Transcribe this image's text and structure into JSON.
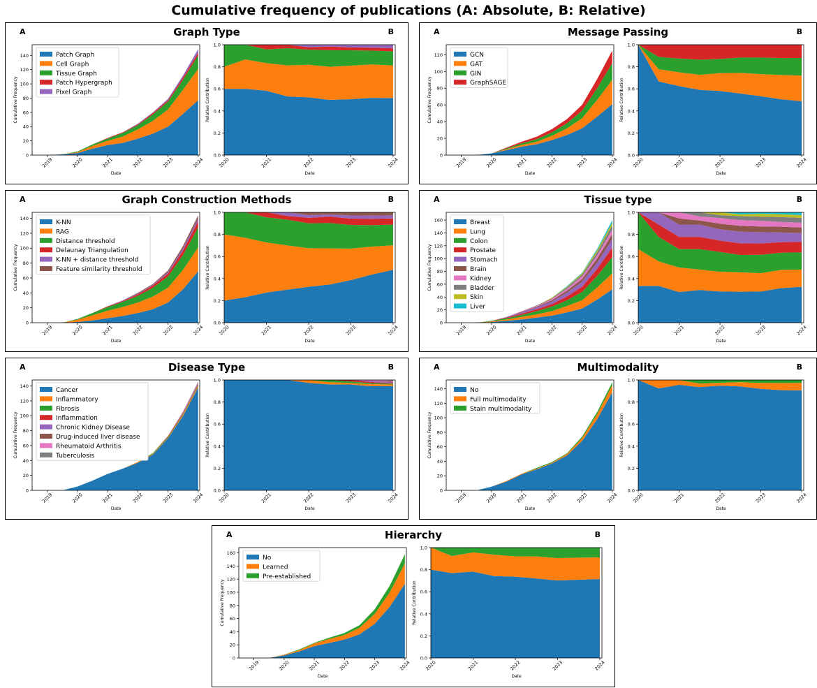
{
  "title": "Cumulative frequency of publications (A: Absolute, B: Relative)",
  "panel_labels": {
    "a": "A",
    "b": "B"
  },
  "axis": {
    "x": "Date",
    "abs_y": "Cumulative Frequency",
    "rel_y": "Relative Contribution"
  },
  "colors": [
    "#1f77b4",
    "#ff7f0e",
    "#2ca02c",
    "#d62728",
    "#9467bd",
    "#8c564b",
    "#e377c2",
    "#7f7f7f",
    "#bcbd22",
    "#17becf"
  ],
  "chart_data": [
    {
      "type": "area",
      "title": "Graph Type",
      "xlabel": "Date",
      "abs_ylabel": "Cumulative Frequency",
      "rel_ylabel": "Relative Contribution",
      "x": [
        "2018-07",
        "2019-01",
        "2019-07",
        "2020-01",
        "2020-07",
        "2021-01",
        "2021-07",
        "2022-01",
        "2022-07",
        "2023-01",
        "2023-07",
        "2024-01"
      ],
      "abs_xticks": [
        "2019",
        "2020",
        "2021",
        "2022",
        "2023",
        "2024"
      ],
      "rel_xticks": [
        "2020",
        "2021",
        "2022",
        "2023",
        "2024"
      ],
      "abs_yticks": [
        0,
        20,
        40,
        60,
        80,
        100,
        120,
        140
      ],
      "abs_ylim": [
        0,
        155
      ],
      "rel_yticks": [
        0.0,
        0.2,
        0.4,
        0.6,
        0.8,
        1.0
      ],
      "rel_start": "2020-01",
      "series": [
        {
          "name": "Patch Graph",
          "values": [
            0,
            0,
            1,
            3,
            9,
            14,
            17,
            23,
            30,
            40,
            58,
            77
          ]
        },
        {
          "name": "Cell Graph",
          "values": [
            0,
            0,
            0,
            1,
            4,
            6,
            9,
            13,
            18,
            24,
            34,
            44
          ]
        },
        {
          "name": "Tissue Graph",
          "values": [
            0,
            0,
            0,
            1,
            2,
            3,
            5,
            6,
            9,
            11,
            14,
            19
          ]
        },
        {
          "name": "Patch Hypergraph",
          "values": [
            0,
            0,
            0,
            0,
            0,
            1,
            1,
            1,
            2,
            2,
            3,
            4
          ]
        },
        {
          "name": "Pixel Graph",
          "values": [
            0,
            0,
            0,
            0,
            0,
            0,
            0,
            1,
            1,
            2,
            3,
            5
          ]
        }
      ]
    },
    {
      "type": "area",
      "title": "Message Passing",
      "xlabel": "Date",
      "abs_ylabel": "Cumulative Frequency",
      "rel_ylabel": "Relative Contribution",
      "x": [
        "2018-07",
        "2019-01",
        "2019-07",
        "2020-01",
        "2020-07",
        "2021-01",
        "2021-07",
        "2022-01",
        "2022-07",
        "2023-01",
        "2023-07",
        "2024-01"
      ],
      "abs_xticks": [
        "2019",
        "2020",
        "2021",
        "2022",
        "2023",
        "2024"
      ],
      "rel_xticks": [
        "2020",
        "2021",
        "2022",
        "2023",
        "2024"
      ],
      "abs_yticks": [
        0,
        20,
        40,
        60,
        80,
        100,
        120
      ],
      "abs_ylim": [
        0,
        132
      ],
      "rel_yticks": [
        0.0,
        0.2,
        0.4,
        0.6,
        0.8,
        1.0
      ],
      "rel_start": "2020-01",
      "series": [
        {
          "name": "GCN",
          "values": [
            0,
            0,
            0,
            2,
            6,
            10,
            13,
            18,
            24,
            32,
            46,
            61
          ]
        },
        {
          "name": "GAT",
          "values": [
            0,
            0,
            0,
            0,
            1,
            2,
            3,
            5,
            8,
            12,
            20,
            29
          ]
        },
        {
          "name": "GIN",
          "values": [
            0,
            0,
            0,
            0,
            1,
            2,
            3,
            4,
            6,
            9,
            14,
            20
          ]
        },
        {
          "name": "GraphSAGE",
          "values": [
            0,
            0,
            0,
            0,
            1,
            2,
            3,
            4,
            5,
            7,
            11,
            15
          ]
        }
      ]
    },
    {
      "type": "area",
      "title": "Graph Construction Methods",
      "xlabel": "Date",
      "abs_ylabel": "Cumulative Frequency",
      "rel_ylabel": "Relative Contribution",
      "x": [
        "2018-07",
        "2019-01",
        "2019-07",
        "2020-01",
        "2020-07",
        "2021-01",
        "2021-07",
        "2022-01",
        "2022-07",
        "2023-01",
        "2023-07",
        "2024-01"
      ],
      "abs_xticks": [
        "2019",
        "2020",
        "2021",
        "2022",
        "2023",
        "2024"
      ],
      "rel_xticks": [
        "2020",
        "2021",
        "2022",
        "2023",
        "2024"
      ],
      "abs_yticks": [
        0,
        20,
        40,
        60,
        80,
        100,
        120,
        140
      ],
      "abs_ylim": [
        0,
        148
      ],
      "rel_yticks": [
        0.0,
        0.2,
        0.4,
        0.6,
        0.8,
        1.0
      ],
      "rel_start": "2020-01",
      "series": [
        {
          "name": "K-NN",
          "values": [
            0,
            0,
            0,
            1,
            3,
            6,
            9,
            13,
            18,
            27,
            45,
            69
          ]
        },
        {
          "name": "RAG",
          "values": [
            0,
            0,
            0,
            3,
            7,
            10,
            12,
            14,
            17,
            20,
            26,
            32
          ]
        },
        {
          "name": "Distance threshold",
          "values": [
            0,
            0,
            0,
            1,
            3,
            5,
            7,
            9,
            12,
            15,
            20,
            27
          ]
        },
        {
          "name": "Delaunay Triangulation",
          "values": [
            0,
            0,
            0,
            0,
            0,
            1,
            1,
            2,
            3,
            4,
            6,
            8
          ]
        },
        {
          "name": "K-NN + distance threshold",
          "values": [
            0,
            0,
            0,
            0,
            0,
            0,
            1,
            1,
            1,
            2,
            3,
            4
          ]
        },
        {
          "name": "Feature similarity threshold",
          "values": [
            0,
            0,
            0,
            0,
            0,
            0,
            0,
            1,
            1,
            2,
            3,
            4
          ]
        }
      ]
    },
    {
      "type": "area",
      "title": "Tissue type",
      "xlabel": "Date",
      "abs_ylabel": "Cumulative Frequency",
      "rel_ylabel": "Relative Contribution",
      "x": [
        "2018-07",
        "2019-01",
        "2019-07",
        "2020-01",
        "2020-07",
        "2021-01",
        "2021-07",
        "2022-01",
        "2022-07",
        "2023-01",
        "2023-07",
        "2024-01"
      ],
      "abs_xticks": [
        "2019",
        "2020",
        "2021",
        "2022",
        "2023",
        "2024"
      ],
      "rel_xticks": [
        "2020",
        "2021",
        "2022",
        "2023",
        "2024"
      ],
      "abs_yticks": [
        0,
        20,
        40,
        60,
        80,
        100,
        120,
        140,
        160
      ],
      "abs_ylim": [
        0,
        172
      ],
      "rel_yticks": [
        0.0,
        0.2,
        0.4,
        0.6,
        0.8,
        1.0
      ],
      "rel_start": "2020-01",
      "series": [
        {
          "name": "Breast",
          "values": [
            0,
            0,
            0,
            1,
            3,
            5,
            8,
            11,
            16,
            22,
            36,
            52
          ]
        },
        {
          "name": "Lung",
          "values": [
            0,
            0,
            0,
            1,
            2,
            4,
            5,
            7,
            10,
            13,
            19,
            25
          ]
        },
        {
          "name": "Colon",
          "values": [
            0,
            0,
            0,
            1,
            2,
            3,
            5,
            7,
            9,
            13,
            18,
            25
          ]
        },
        {
          "name": "Prostate",
          "values": [
            0,
            0,
            0,
            0,
            1,
            2,
            3,
            4,
            6,
            8,
            11,
            15
          ]
        },
        {
          "name": "Stomach",
          "values": [
            0,
            0,
            0,
            0,
            1,
            2,
            3,
            4,
            6,
            8,
            10,
            13
          ]
        },
        {
          "name": "Brain",
          "values": [
            0,
            0,
            0,
            0,
            0,
            1,
            1,
            2,
            3,
            4,
            6,
            8
          ]
        },
        {
          "name": "Kidney",
          "values": [
            0,
            0,
            0,
            0,
            0,
            1,
            1,
            2,
            3,
            4,
            5,
            7
          ]
        },
        {
          "name": "Bladder",
          "values": [
            0,
            0,
            0,
            0,
            0,
            0,
            1,
            1,
            2,
            3,
            5,
            7
          ]
        },
        {
          "name": "Skin",
          "values": [
            0,
            0,
            0,
            0,
            0,
            0,
            0,
            1,
            1,
            2,
            3,
            4
          ]
        },
        {
          "name": "Liver",
          "values": [
            0,
            0,
            0,
            0,
            0,
            0,
            0,
            0,
            1,
            1,
            2,
            4
          ]
        }
      ]
    },
    {
      "type": "area",
      "title": "Disease Type",
      "xlabel": "Date",
      "abs_ylabel": "Cumulative Frequency",
      "rel_ylabel": "Relative Contribution",
      "x": [
        "2018-07",
        "2019-01",
        "2019-07",
        "2020-01",
        "2020-07",
        "2021-01",
        "2021-07",
        "2022-01",
        "2022-07",
        "2023-01",
        "2023-07",
        "2024-01"
      ],
      "abs_xticks": [
        "2019",
        "2020",
        "2021",
        "2022",
        "2023",
        "2024"
      ],
      "rel_xticks": [
        "2020",
        "2021",
        "2022",
        "2023",
        "2024"
      ],
      "abs_yticks": [
        0,
        20,
        40,
        60,
        80,
        100,
        120,
        140
      ],
      "abs_ylim": [
        0,
        148
      ],
      "rel_yticks": [
        0.0,
        0.2,
        0.4,
        0.6,
        0.8,
        1.0
      ],
      "rel_start": "2020-01",
      "series": [
        {
          "name": "Cancer",
          "values": [
            0,
            0,
            0,
            5,
            13,
            22,
            29,
            37,
            48,
            70,
            100,
            138
          ]
        },
        {
          "name": "Inflammatory",
          "values": [
            0,
            0,
            0,
            0,
            0,
            0,
            0,
            1,
            1,
            1,
            2,
            2
          ]
        },
        {
          "name": "Fibrosis",
          "values": [
            0,
            0,
            0,
            0,
            0,
            0,
            0,
            0,
            1,
            1,
            1,
            1
          ]
        },
        {
          "name": "Inflammation",
          "values": [
            0,
            0,
            0,
            0,
            0,
            0,
            0,
            0,
            0,
            1,
            1,
            1
          ]
        },
        {
          "name": "Chronic Kidney Disease",
          "values": [
            0,
            0,
            0,
            0,
            0,
            0,
            0,
            0,
            0,
            0,
            1,
            1
          ]
        },
        {
          "name": "Drug-induced liver disease",
          "values": [
            0,
            0,
            0,
            0,
            0,
            0,
            0,
            0,
            0,
            0,
            0,
            1
          ]
        },
        {
          "name": "Rheumatoid Arthritis",
          "values": [
            0,
            0,
            0,
            0,
            0,
            0,
            0,
            0,
            0,
            0,
            1,
            1
          ]
        },
        {
          "name": "Tuberculosis",
          "values": [
            0,
            0,
            0,
            0,
            0,
            0,
            0,
            0,
            0,
            0,
            0,
            1
          ]
        }
      ]
    },
    {
      "type": "area",
      "title": "Multimodality",
      "xlabel": "Date",
      "abs_ylabel": "Cumulative Frequency",
      "rel_ylabel": "Relative Contribution",
      "x": [
        "2018-07",
        "2019-01",
        "2019-07",
        "2020-01",
        "2020-07",
        "2021-01",
        "2021-07",
        "2022-01",
        "2022-07",
        "2023-01",
        "2023-07",
        "2024-01"
      ],
      "abs_xticks": [
        "2019",
        "2020",
        "2021",
        "2022",
        "2023",
        "2024"
      ],
      "rel_xticks": [
        "2020",
        "2021",
        "2022",
        "2023",
        "2024"
      ],
      "abs_yticks": [
        0,
        20,
        40,
        60,
        80,
        100,
        120,
        140
      ],
      "abs_ylim": [
        0,
        152
      ],
      "rel_yticks": [
        0.0,
        0.2,
        0.4,
        0.6,
        0.8,
        1.0
      ],
      "rel_start": "2020-01",
      "series": [
        {
          "name": "No",
          "values": [
            0,
            0,
            0,
            5,
            12,
            22,
            29,
            37,
            48,
            68,
            98,
            135
          ]
        },
        {
          "name": "Full multimodality",
          "values": [
            0,
            0,
            0,
            0,
            1,
            1,
            1,
            1,
            2,
            4,
            7,
            10
          ]
        },
        {
          "name": "Stain multimodality",
          "values": [
            0,
            0,
            0,
            0,
            0,
            0,
            1,
            1,
            1,
            2,
            3,
            4
          ]
        }
      ]
    },
    {
      "type": "area",
      "title": "Hierarchy",
      "xlabel": "Date",
      "abs_ylabel": "Cumulative Frequency",
      "rel_ylabel": "Relative Contribution",
      "x": [
        "2018-07",
        "2019-01",
        "2019-07",
        "2020-01",
        "2020-07",
        "2021-01",
        "2021-07",
        "2022-01",
        "2022-07",
        "2023-01",
        "2023-07",
        "2024-01"
      ],
      "abs_xticks": [
        "2019",
        "2020",
        "2021",
        "2022",
        "2023",
        "2024"
      ],
      "rel_xticks": [
        "2020",
        "2021",
        "2022",
        "2023",
        "2024"
      ],
      "abs_yticks": [
        0,
        20,
        40,
        60,
        80,
        100,
        120,
        140,
        160
      ],
      "abs_ylim": [
        0,
        168
      ],
      "rel_yticks": [
        0.0,
        0.2,
        0.4,
        0.6,
        0.8,
        1.0
      ],
      "rel_start": "2020-01",
      "series": [
        {
          "name": "No",
          "values": [
            0,
            0,
            0,
            4,
            10,
            18,
            23,
            28,
            36,
            52,
            78,
            113
          ]
        },
        {
          "name": "Learned",
          "values": [
            0,
            0,
            0,
            1,
            2,
            4,
            6,
            7,
            10,
            15,
            22,
            31
          ]
        },
        {
          "name": "Pre-established",
          "values": [
            0,
            0,
            0,
            0,
            1,
            1,
            2,
            3,
            4,
            7,
            10,
            14
          ]
        }
      ]
    }
  ]
}
